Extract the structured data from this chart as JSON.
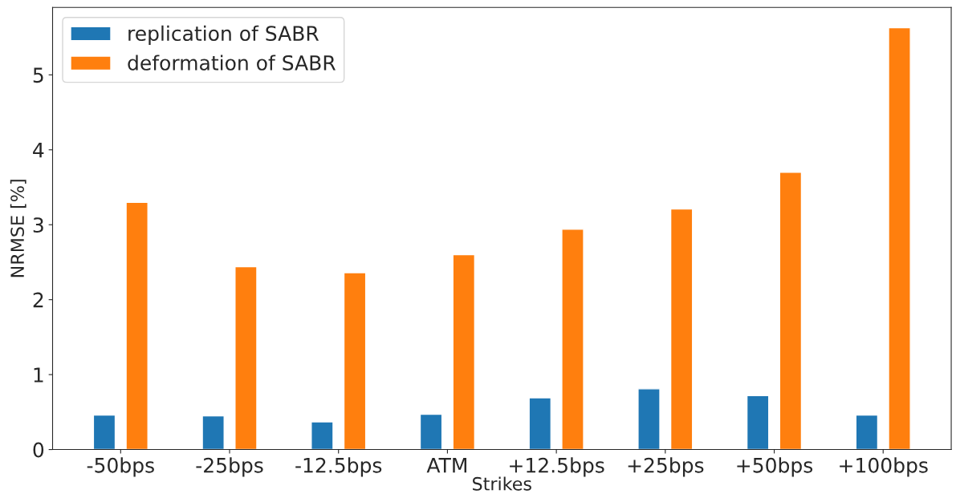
{
  "chart_data": {
    "type": "bar",
    "xlabel": "Strikes",
    "ylabel": "NRMSE [%]",
    "categories": [
      "-50bps",
      "-25bps",
      "-12.5bps",
      "ATM",
      "+12.5bps",
      "+25bps",
      "+50bps",
      "+100bps"
    ],
    "series": [
      {
        "name": "replication of SABR",
        "color": "#1f77b4",
        "values": [
          0.46,
          0.45,
          0.37,
          0.47,
          0.69,
          0.81,
          0.72,
          0.46
        ]
      },
      {
        "name": "deformation of SABR",
        "color": "#ff7f0e",
        "values": [
          3.3,
          2.44,
          2.36,
          2.6,
          2.94,
          3.21,
          3.7,
          5.63
        ]
      }
    ],
    "ylim": [
      0,
      5.9
    ],
    "yticks": [
      0,
      1,
      2,
      3,
      4,
      5
    ],
    "legend": "upper left",
    "grid": false
  }
}
